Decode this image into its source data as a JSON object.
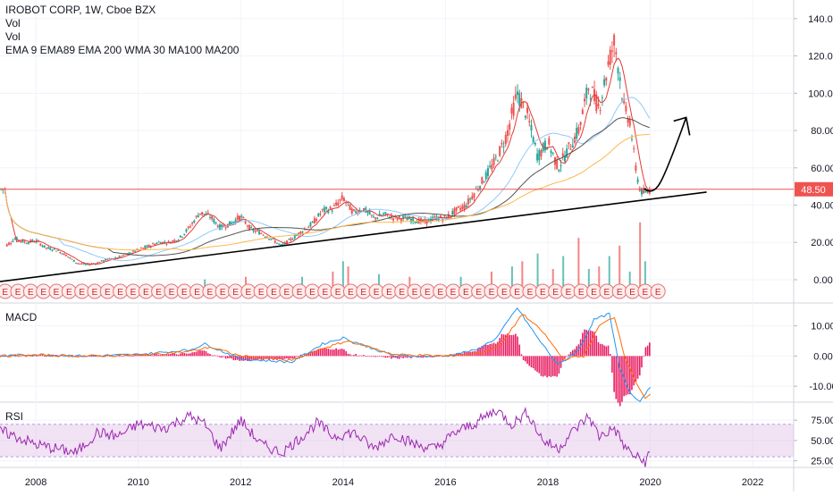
{
  "header": {
    "symbol": "IROBOT CORP, 1W, Cboe BZX",
    "vol1": "Vol",
    "vol2": "Vol",
    "ma_list": "EMA 9 EMA89 EMA 200 WMA 30 MA100 MA200"
  },
  "price_tag": "48.50",
  "colors": {
    "up": "#26a69a",
    "down": "#ef5350",
    "ema9": "#e53935",
    "ema89": "#90caf9",
    "ema200": "#f4b183",
    "wma30": "#4db6ac",
    "ma100": "#555555",
    "ma200": "#ffb74d",
    "macd": "#2196f3",
    "signal": "#ff6d00",
    "hist": "#e91e63",
    "rsi": "#9c27b0",
    "rsi_band": "#e1bee7",
    "price_line": "#ef5350",
    "trendline": "#000000"
  },
  "chart_data": [
    {
      "type": "line",
      "pane": "price",
      "ylim": [
        -12,
        150
      ],
      "y_ticks": [
        "140.00",
        "120.00",
        "100.00",
        "80.00",
        "60.00",
        "40.00",
        "20.00",
        "0.00"
      ],
      "y_tick_values": [
        140,
        120,
        100,
        80,
        60,
        40,
        20,
        0
      ],
      "x_ticks": [
        "2008",
        "2010",
        "2012",
        "2014",
        "2016",
        "2018",
        "2020",
        "2022"
      ],
      "x_tick_values": [
        2008,
        2010,
        2012,
        2014,
        2016,
        2018,
        2020,
        2022
      ],
      "last_price": 48.5,
      "series": [
        {
          "type": "candlestick",
          "ohlc_points": [
            [
              2007.4,
              18
            ],
            [
              2007.6,
              22
            ],
            [
              2007.8,
              20
            ],
            [
              2008.0,
              21
            ],
            [
              2008.2,
              17
            ],
            [
              2008.4,
              16
            ],
            [
              2008.6,
              13
            ],
            [
              2008.8,
              9
            ],
            [
              2009.0,
              8
            ],
            [
              2009.2,
              9
            ],
            [
              2009.4,
              11
            ],
            [
              2009.6,
              12
            ],
            [
              2009.8,
              14
            ],
            [
              2010.0,
              16
            ],
            [
              2010.2,
              18
            ],
            [
              2010.4,
              20
            ],
            [
              2010.6,
              20
            ],
            [
              2010.8,
              22
            ],
            [
              2011.0,
              28
            ],
            [
              2011.2,
              36
            ],
            [
              2011.4,
              34
            ],
            [
              2011.6,
              28
            ],
            [
              2011.8,
              30
            ],
            [
              2012.0,
              34
            ],
            [
              2012.2,
              27
            ],
            [
              2012.4,
              25
            ],
            [
              2012.6,
              22
            ],
            [
              2012.8,
              18
            ],
            [
              2013.0,
              22
            ],
            [
              2013.2,
              26
            ],
            [
              2013.4,
              30
            ],
            [
              2013.6,
              37
            ],
            [
              2013.8,
              38
            ],
            [
              2014.0,
              44
            ],
            [
              2014.2,
              36
            ],
            [
              2014.4,
              38
            ],
            [
              2014.6,
              33
            ],
            [
              2014.8,
              35
            ],
            [
              2015.0,
              33
            ],
            [
              2015.2,
              33
            ],
            [
              2015.4,
              32
            ],
            [
              2015.6,
              31
            ],
            [
              2015.8,
              33
            ],
            [
              2016.0,
              33
            ],
            [
              2016.2,
              37
            ],
            [
              2016.4,
              40
            ],
            [
              2016.6,
              48
            ],
            [
              2016.8,
              56
            ],
            [
              2017.0,
              65
            ],
            [
              2017.2,
              78
            ],
            [
              2017.4,
              100
            ],
            [
              2017.6,
              88
            ],
            [
              2017.8,
              66
            ],
            [
              2018.0,
              74
            ],
            [
              2018.2,
              60
            ],
            [
              2018.4,
              70
            ],
            [
              2018.6,
              80
            ],
            [
              2018.8,
              104
            ],
            [
              2019.0,
              92
            ],
            [
              2019.2,
              118
            ],
            [
              2019.3,
              128
            ],
            [
              2019.4,
              110
            ],
            [
              2019.5,
              90
            ],
            [
              2019.6,
              86
            ],
            [
              2019.7,
              62
            ],
            [
              2019.8,
              48
            ],
            [
              2019.9,
              46
            ],
            [
              2020.0,
              48.5
            ]
          ]
        },
        {
          "name": "",
          "role": "ema9"
        },
        {
          "name": "",
          "role": "ema89"
        },
        {
          "name": "",
          "role": "ma100"
        }
      ],
      "annotations": [
        {
          "type": "trendline",
          "points": [
            [
              2007.3,
              -1
            ],
            [
              2021.1,
              47
            ]
          ]
        },
        {
          "type": "hline",
          "y": 48.5
        },
        {
          "type": "arrow",
          "from": [
            2020.05,
            48
          ],
          "to": [
            2020.7,
            87
          ]
        }
      ],
      "earnings_marker": "E",
      "earnings_markers": [
        2007.4,
        2007.65,
        2007.9,
        2008.15,
        2008.4,
        2008.65,
        2008.9,
        2009.15,
        2009.4,
        2009.65,
        2009.9,
        2010.15,
        2010.4,
        2010.65,
        2010.9,
        2011.15,
        2011.4,
        2011.65,
        2011.9,
        2012.15,
        2012.4,
        2012.65,
        2012.9,
        2013.15,
        2013.4,
        2013.65,
        2013.9,
        2014.15,
        2014.4,
        2014.65,
        2014.9,
        2015.15,
        2015.4,
        2015.65,
        2015.9,
        2016.15,
        2016.4,
        2016.65,
        2016.9,
        2017.15,
        2017.4,
        2017.65,
        2017.9,
        2018.15,
        2018.4,
        2018.65,
        2018.9,
        2019.15,
        2019.4,
        2019.65,
        2019.9,
        2020.15
      ],
      "volume_bars": [
        [
          2011.3,
          3
        ],
        [
          2012.1,
          4
        ],
        [
          2013.2,
          4
        ],
        [
          2013.8,
          6
        ],
        [
          2014.0,
          10
        ],
        [
          2014.1,
          8
        ],
        [
          2014.7,
          5
        ],
        [
          2015.3,
          4
        ],
        [
          2016.3,
          4
        ],
        [
          2016.9,
          6
        ],
        [
          2017.3,
          8
        ],
        [
          2017.5,
          10
        ],
        [
          2017.8,
          13
        ],
        [
          2018.1,
          7
        ],
        [
          2018.3,
          12
        ],
        [
          2018.6,
          19
        ],
        [
          2018.8,
          7
        ],
        [
          2019.0,
          8
        ],
        [
          2019.2,
          12
        ],
        [
          2019.4,
          16
        ],
        [
          2019.6,
          6
        ],
        [
          2019.8,
          25
        ],
        [
          2019.9,
          10
        ]
      ]
    },
    {
      "type": "line",
      "pane": "MACD",
      "title": "MACD",
      "ylim": [
        -15,
        17
      ],
      "y_ticks": [
        "10.00",
        "0.00",
        "-10.00"
      ],
      "y_tick_values": [
        10,
        0,
        -10
      ],
      "series": [
        {
          "name": "",
          "role": "macd",
          "x": [
            2007.3,
            2008,
            2009,
            2010,
            2011,
            2011.3,
            2012,
            2013,
            2013.6,
            2014,
            2015,
            2016,
            2016.6,
            2017,
            2017.4,
            2017.8,
            2018.2,
            2018.6,
            2018.9,
            2019.2,
            2019.4,
            2019.6,
            2019.8,
            2020.0
          ],
          "y": [
            0,
            0.5,
            0,
            0.5,
            2,
            4,
            -1,
            -2,
            4,
            6,
            0,
            0,
            2,
            6,
            16,
            6,
            -3,
            2,
            12,
            14,
            -4,
            -12,
            -15,
            -10
          ]
        },
        {
          "name": "",
          "role": "signal",
          "x": [
            2007.3,
            2008,
            2009,
            2010,
            2011,
            2011.4,
            2012,
            2013,
            2013.7,
            2014.1,
            2015,
            2016,
            2016.7,
            2017.1,
            2017.5,
            2017.9,
            2018.3,
            2018.7,
            2019.0,
            2019.3,
            2019.5,
            2019.7,
            2019.9,
            2020.0
          ],
          "y": [
            0,
            0.3,
            0,
            0.3,
            1.5,
            3,
            0,
            -1.5,
            3,
            5,
            0.5,
            0,
            1,
            4,
            14,
            8,
            -1,
            0,
            10,
            13,
            0,
            -8,
            -14,
            -13
          ]
        }
      ]
    },
    {
      "type": "line",
      "pane": "RSI",
      "title": "RSI",
      "ylim": [
        18,
        95
      ],
      "band": [
        30,
        70
      ],
      "y_ticks": [
        "75.00",
        "50.00",
        "25.00"
      ],
      "y_tick_values": [
        75,
        50,
        25
      ],
      "series": [
        {
          "name": "",
          "role": "rsi",
          "x": [
            2007.3,
            2007.6,
            2008,
            2008.4,
            2008.8,
            2009.2,
            2009.6,
            2010,
            2010.5,
            2011,
            2011.3,
            2011.6,
            2012,
            2012.4,
            2012.8,
            2013.2,
            2013.5,
            2013.8,
            2014.2,
            2014.6,
            2015,
            2015.4,
            2015.8,
            2016.2,
            2016.6,
            2017,
            2017.3,
            2017.6,
            2017.9,
            2018.2,
            2018.5,
            2018.8,
            2019,
            2019.3,
            2019.5,
            2019.7,
            2019.9,
            2020.0
          ],
          "y": [
            62,
            55,
            45,
            40,
            35,
            60,
            55,
            70,
            65,
            80,
            70,
            40,
            75,
            45,
            35,
            55,
            72,
            55,
            60,
            40,
            58,
            45,
            40,
            60,
            72,
            88,
            70,
            85,
            50,
            40,
            62,
            80,
            55,
            65,
            42,
            30,
            24,
            35
          ]
        }
      ]
    }
  ]
}
